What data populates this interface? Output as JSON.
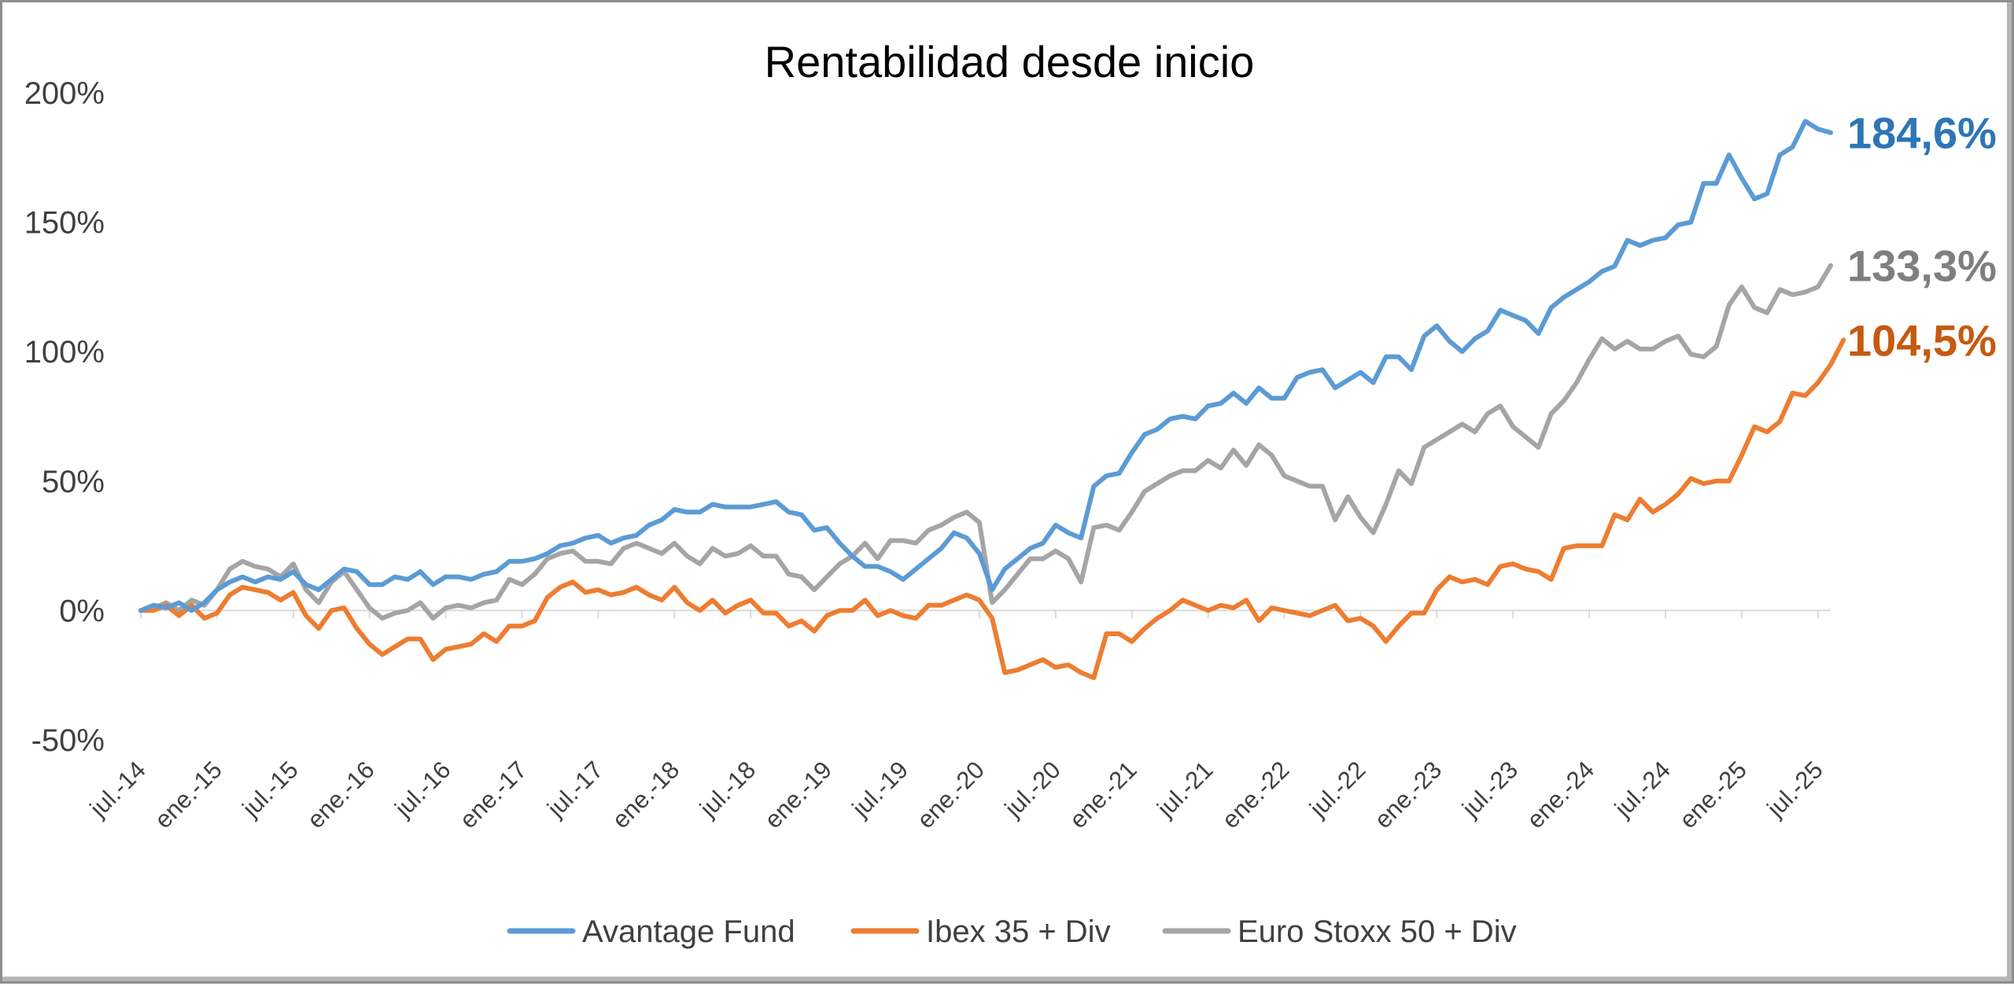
{
  "chart_data": {
    "type": "line",
    "title": "Rentabilidad desde inicio",
    "ylim": [
      -50,
      200
    ],
    "yticks": [
      "-50%",
      "0%",
      "50%",
      "100%",
      "150%",
      "200%"
    ],
    "xtick_labels": [
      "jul.-14",
      "ene.-15",
      "jul.-15",
      "ene.-16",
      "jul.-16",
      "ene.-17",
      "jul.-17",
      "ene.-18",
      "jul.-18",
      "ene.-19",
      "jul.-19",
      "ene.-20",
      "jul.-20",
      "ene.-21",
      "jul.-21",
      "ene.-22",
      "jul.-22",
      "ene.-23",
      "jul.-23",
      "ene.-24",
      "jul.-24",
      "ene.-25",
      "jul.-25"
    ],
    "x_start": "jul.-14",
    "grid": false,
    "legend_position": "bottom",
    "series": [
      {
        "name": "Avantage Fund",
        "color": "#5B9BD5",
        "end_label": "184,6%",
        "end_label_color": "#2E75B6",
        "values": [
          0,
          2,
          1,
          3,
          0,
          3,
          8,
          11,
          13,
          11,
          13,
          12,
          15,
          10,
          8,
          12,
          16,
          15,
          10,
          10,
          13,
          12,
          15,
          10,
          13,
          13,
          12,
          14,
          15,
          19,
          19,
          20,
          22,
          25,
          26,
          28,
          29,
          26,
          28,
          29,
          33,
          35,
          39,
          38,
          38,
          41,
          40,
          40,
          40,
          41,
          42,
          38,
          37,
          31,
          32,
          26,
          21,
          17,
          17,
          15,
          12,
          16,
          20,
          24,
          30,
          28,
          22,
          8,
          16,
          20,
          24,
          26,
          33,
          30,
          28,
          48,
          52,
          53,
          61,
          68,
          70,
          74,
          75,
          74,
          79,
          80,
          84,
          80,
          86,
          82,
          82,
          90,
          92,
          93,
          86,
          89,
          92,
          88,
          98,
          98,
          93,
          106,
          110,
          104,
          100,
          105,
          108,
          116,
          114,
          112,
          107,
          117,
          121,
          124,
          127,
          131,
          133,
          143,
          141,
          143,
          144,
          149,
          150,
          165,
          165,
          176,
          167,
          159,
          161,
          176,
          179,
          189,
          186,
          184.6
        ]
      },
      {
        "name": "Ibex 35 + Div",
        "color": "#ED7D31",
        "end_label": "104,5%",
        "end_label_color": "#C55A11",
        "values": [
          0,
          0,
          2,
          -2,
          2,
          -3,
          -1,
          6,
          9,
          8,
          7,
          4,
          7,
          -2,
          -7,
          0,
          1,
          -7,
          -13,
          -17,
          -14,
          -11,
          -11,
          -19,
          -15,
          -14,
          -13,
          -9,
          -12,
          -6,
          -6,
          -4,
          5,
          9,
          11,
          7,
          8,
          6,
          7,
          9,
          6,
          4,
          9,
          3,
          0,
          4,
          -1,
          2,
          4,
          -1,
          -1,
          -6,
          -4,
          -8,
          -2,
          0,
          0,
          4,
          -2,
          0,
          -2,
          -3,
          2,
          2,
          4,
          6,
          4,
          -3,
          -24,
          -23,
          -21,
          -19,
          -22,
          -21,
          -24,
          -26,
          -9,
          -9,
          -12,
          -7,
          -3,
          0,
          4,
          2,
          0,
          2,
          1,
          4,
          -4,
          1,
          0,
          -1,
          -2,
          0,
          2,
          -4,
          -3,
          -6,
          -12,
          -6,
          -1,
          -1,
          8,
          13,
          11,
          12,
          10,
          17,
          18,
          16,
          15,
          12,
          24,
          25,
          25,
          25,
          37,
          35,
          43,
          38,
          41,
          45,
          51,
          49,
          50,
          50,
          60,
          71,
          69,
          73,
          84,
          83,
          88,
          95,
          104.5
        ]
      },
      {
        "name": "Euro Stoxx 50 + Div",
        "color": "#A5A5A5",
        "end_label": "133,3%",
        "end_label_color": "#7F7F7F",
        "values": [
          0,
          1,
          3,
          0,
          4,
          2,
          8,
          16,
          19,
          17,
          16,
          13,
          18,
          8,
          3,
          11,
          15,
          8,
          1,
          -3,
          -1,
          0,
          3,
          -3,
          1,
          2,
          1,
          3,
          4,
          12,
          10,
          14,
          20,
          22,
          23,
          19,
          19,
          18,
          24,
          26,
          24,
          22,
          26,
          21,
          18,
          24,
          21,
          22,
          25,
          21,
          21,
          14,
          13,
          8,
          13,
          18,
          21,
          26,
          20,
          27,
          27,
          26,
          31,
          33,
          36,
          38,
          34,
          3,
          8,
          14,
          20,
          20,
          23,
          20,
          11,
          32,
          33,
          31,
          38,
          46,
          49,
          52,
          54,
          54,
          58,
          55,
          62,
          56,
          64,
          60,
          52,
          50,
          48,
          48,
          35,
          44,
          36,
          30,
          41,
          54,
          49,
          63,
          66,
          69,
          72,
          69,
          76,
          79,
          71,
          67,
          63,
          76,
          81,
          88,
          97,
          105,
          101,
          104,
          101,
          101,
          104,
          106,
          99,
          98,
          102,
          118,
          125,
          117,
          115,
          124,
          122,
          123,
          125,
          133.3
        ]
      }
    ]
  }
}
